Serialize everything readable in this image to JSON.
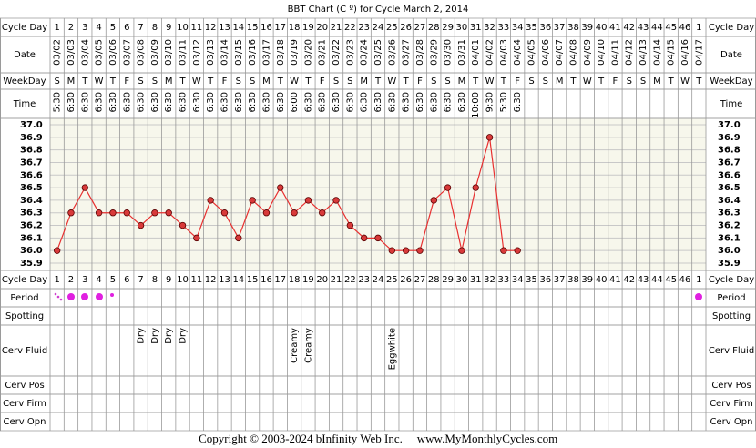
{
  "chart_data": {
    "type": "line",
    "title": "BBT Chart (C º) for Cycle March 2, 2014",
    "row_labels": {
      "cycle_day": "Cycle Day",
      "date": "Date",
      "weekday": "WeekDay",
      "time": "Time",
      "period": "Period",
      "spotting": "Spotting",
      "cerv_fluid": "Cerv Fluid",
      "cerv_pos": "Cerv Pos",
      "cerv_firm": "Cerv Firm",
      "cerv_opn": "Cerv Opn"
    },
    "categories": [
      1,
      2,
      3,
      4,
      5,
      6,
      7,
      8,
      9,
      10,
      11,
      12,
      13,
      14,
      15,
      16,
      17,
      18,
      19,
      20,
      21,
      22,
      23,
      24,
      25,
      26,
      27,
      28,
      29,
      30,
      31,
      32,
      33,
      34,
      35,
      36,
      37,
      38,
      39,
      40,
      41,
      42,
      43,
      44,
      45,
      46,
      1
    ],
    "dates": [
      "03/02",
      "03/03",
      "03/04",
      "03/05",
      "03/06",
      "03/07",
      "03/08",
      "03/09",
      "03/10",
      "03/11",
      "03/12",
      "03/13",
      "03/14",
      "03/15",
      "03/16",
      "03/17",
      "03/18",
      "03/19",
      "03/20",
      "03/21",
      "03/22",
      "03/23",
      "03/24",
      "03/25",
      "03/26",
      "03/27",
      "03/28",
      "03/29",
      "03/30",
      "03/31",
      "04/01",
      "04/02",
      "04/03",
      "04/04",
      "04/05",
      "04/06",
      "04/07",
      "04/08",
      "04/09",
      "04/10",
      "04/11",
      "04/12",
      "04/13",
      "04/14",
      "04/15",
      "04/16",
      "04/17"
    ],
    "weekdays": [
      "S",
      "M",
      "T",
      "W",
      "T",
      "F",
      "S",
      "S",
      "M",
      "T",
      "W",
      "T",
      "F",
      "S",
      "S",
      "M",
      "T",
      "W",
      "T",
      "F",
      "S",
      "S",
      "M",
      "T",
      "W",
      "T",
      "F",
      "S",
      "S",
      "M",
      "T",
      "W",
      "T",
      "F",
      "S",
      "S",
      "M",
      "T",
      "W",
      "T",
      "F",
      "S",
      "S",
      "M",
      "T",
      "W",
      "T"
    ],
    "times": [
      "5:30",
      "6:30",
      "6:30",
      "6:30",
      "6:30",
      "6:30",
      "6:30",
      "6:30",
      "6:30",
      "6:30",
      "6:30",
      "6:30",
      "6:30",
      "6:30",
      "6:30",
      "6:30",
      "6:30",
      "6:00",
      "6:30",
      "6:30",
      "6:30",
      "6:30",
      "6:30",
      "6:30",
      "6:30",
      "6:30",
      "6:30",
      "6:30",
      "6:30",
      "6:30",
      "10:00",
      "9:30",
      "5:30",
      "6:30",
      null,
      null,
      null,
      null,
      null,
      null,
      null,
      null,
      null,
      null,
      null,
      null,
      null
    ],
    "series": [
      {
        "name": "BBT",
        "color": "#e83030",
        "values": [
          36.0,
          36.3,
          36.5,
          36.3,
          36.3,
          36.3,
          36.2,
          36.3,
          36.3,
          36.2,
          36.1,
          36.4,
          36.3,
          36.1,
          36.4,
          36.3,
          36.5,
          36.3,
          36.4,
          36.3,
          36.4,
          36.2,
          36.1,
          36.1,
          36.0,
          36.0,
          36.0,
          36.4,
          36.5,
          36.0,
          36.5,
          36.9,
          36.0,
          36.0,
          null,
          null,
          null,
          null,
          null,
          null,
          null,
          null,
          null,
          null,
          null,
          null,
          null
        ]
      }
    ],
    "cerv_fluid": [
      null,
      null,
      null,
      null,
      null,
      null,
      "Dry",
      "Dry",
      "Dry",
      "Dry",
      null,
      null,
      null,
      null,
      null,
      null,
      null,
      "Creamy",
      "Creamy",
      null,
      null,
      null,
      null,
      null,
      "Eggwhite",
      null,
      null,
      null,
      null,
      null,
      null,
      null,
      null,
      null,
      null,
      null,
      null,
      null,
      null,
      null,
      null,
      null,
      null,
      null,
      null,
      null,
      null
    ],
    "ylim": [
      35.9,
      37.0
    ],
    "yticks": [
      {
        "value": 37.0,
        "label": "37.0"
      },
      36.9,
      36.8,
      36.7,
      36.6,
      36.5,
      36.4,
      36.3,
      36.2,
      36.1,
      {
        "value": 36.0,
        "label": "36.0"
      },
      35.9
    ],
    "grid": true,
    "footer": {
      "copyright": "Copyright © 2003-2024 bInfinity Web Inc.",
      "site": "www.MyMonthlyCycles.com"
    }
  }
}
